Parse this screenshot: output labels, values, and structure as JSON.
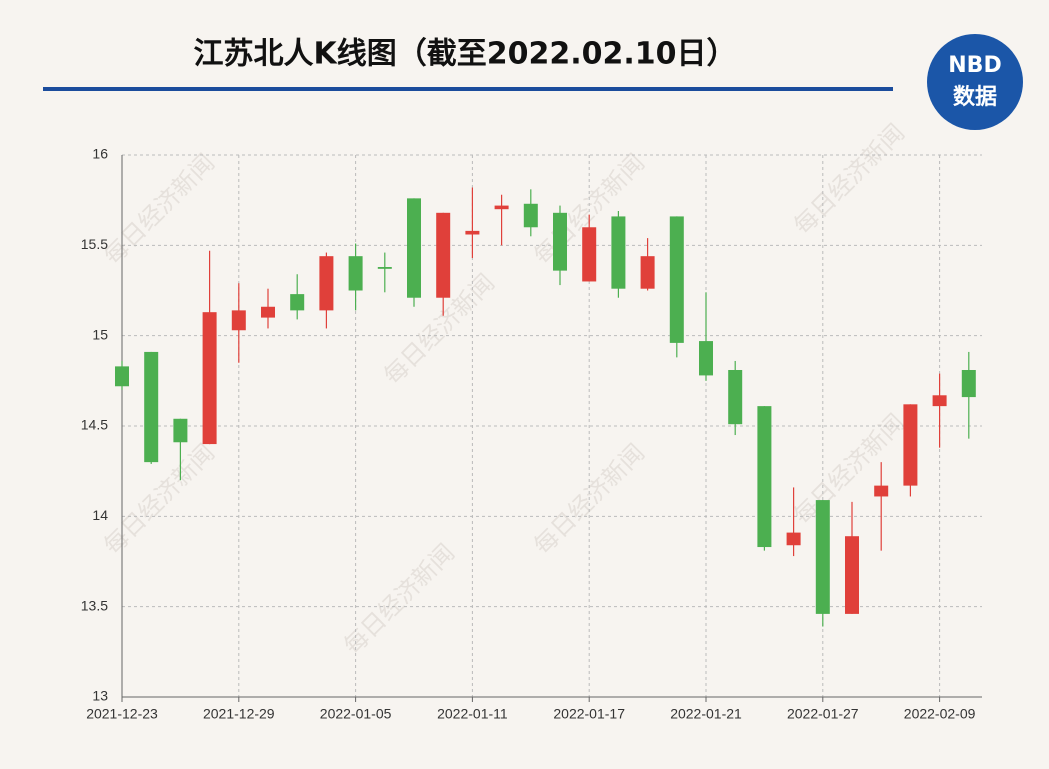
{
  "chart_data": {
    "type": "candlestick",
    "title": "江苏北人K线图（截至2022.02.10日）",
    "logo": {
      "top": "NBD",
      "bottom": "数据"
    },
    "watermark": "每日经济新闻",
    "categories": [
      "2021-12-23",
      null,
      null,
      null,
      "2021-12-29",
      null,
      null,
      null,
      "2022-01-05",
      null,
      null,
      null,
      "2022-01-11",
      null,
      null,
      null,
      "2022-01-17",
      null,
      null,
      null,
      "2022-01-21",
      null,
      null,
      null,
      "2022-01-27",
      null,
      null,
      null,
      "2022-02-09",
      null
    ],
    "open": [
      14.83,
      14.91,
      14.54,
      14.4,
      15.03,
      15.1,
      15.23,
      15.14,
      15.44,
      15.38,
      15.76,
      15.21,
      15.56,
      15.7,
      15.73,
      15.68,
      15.3,
      15.66,
      15.26,
      15.66,
      14.97,
      14.81,
      14.61,
      13.84,
      14.09,
      13.46,
      14.11,
      14.17,
      14.61,
      14.81
    ],
    "high": [
      14.86,
      14.91,
      14.54,
      15.47,
      15.29,
      15.26,
      15.34,
      15.46,
      15.51,
      15.46,
      15.76,
      15.68,
      15.82,
      15.78,
      15.81,
      15.72,
      15.67,
      15.69,
      15.54,
      15.66,
      15.24,
      14.86,
      14.61,
      14.16,
      14.09,
      14.08,
      14.3,
      14.62,
      14.79,
      14.91
    ],
    "low": [
      14.7,
      14.29,
      14.2,
      14.4,
      14.85,
      15.04,
      15.09,
      15.04,
      15.14,
      15.24,
      15.16,
      15.11,
      15.43,
      15.5,
      15.55,
      15.28,
      15.3,
      15.21,
      15.25,
      14.88,
      14.75,
      14.45,
      13.81,
      13.78,
      13.39,
      13.46,
      13.81,
      14.11,
      14.38,
      14.43
    ],
    "close": [
      14.72,
      14.3,
      14.41,
      15.13,
      15.14,
      15.16,
      15.14,
      15.44,
      15.25,
      15.37,
      15.21,
      15.68,
      15.58,
      15.72,
      15.6,
      15.36,
      15.6,
      15.26,
      15.44,
      14.96,
      14.78,
      14.51,
      13.83,
      13.91,
      13.46,
      13.89,
      14.17,
      14.62,
      14.67,
      14.66
    ],
    "up_color": "#e0403a",
    "down_color": "#4caf50",
    "ylim": [
      13,
      16
    ],
    "yticks": [
      13,
      13.5,
      14,
      14.5,
      15,
      15.5,
      16
    ],
    "grid": true
  }
}
